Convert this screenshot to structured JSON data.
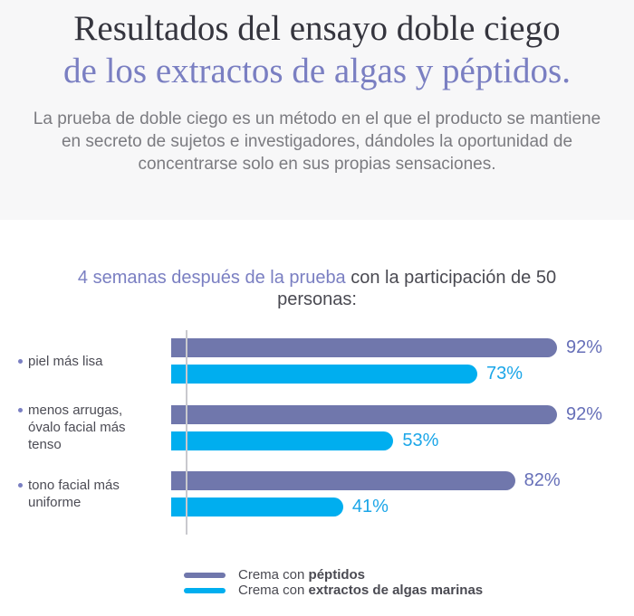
{
  "page": {
    "background": "#ffffff",
    "header_background": "#f7f7f8"
  },
  "header": {
    "title_line1": "Resultados del ensayo doble ciego",
    "title_line2": "de los extractos de algas y péptidos.",
    "title_color": "#35353e",
    "title_accent_color": "#7a7fc2",
    "description": "La prueba de doble ciego es un método en el que el producto se mantiene en secreto de sujetos e investigadores, dándoles la oportunidad de concentrarse solo en sus propias sensaciones."
  },
  "subtitle": {
    "highlight": "4 semanas después de la prueba",
    "rest": " con la participación de 50 personas:",
    "highlight_color": "#7a7fc2"
  },
  "chart_data": {
    "type": "bar",
    "orientation": "horizontal",
    "title": "4 semanas después de la prueba con la participación de 50 personas:",
    "categories": [
      "piel más lisa",
      "menos arrugas, óvalo facial más tenso",
      "tono facial más uniforme"
    ],
    "series": [
      {
        "name": "Crema con péptidos",
        "color": "#7077ac",
        "label_color": "#666fb8",
        "values": [
          92,
          92,
          82
        ]
      },
      {
        "name": "Crema con extractos de algas marinas",
        "color": "#00aeef",
        "label_color": "#1ba6e8",
        "values": [
          73,
          53,
          41
        ]
      }
    ],
    "value_suffix": "%",
    "xlim": [
      0,
      100
    ],
    "grid": false,
    "legend_position": "bottom-left",
    "axis_color": "#c9c9ce",
    "bullet_color": "#7a7fc2"
  },
  "legend": {
    "items": [
      {
        "prefix": "Crema con ",
        "bold": "péptidos"
      },
      {
        "prefix": "Crema con ",
        "bold": "extractos de algas marinas"
      }
    ]
  }
}
